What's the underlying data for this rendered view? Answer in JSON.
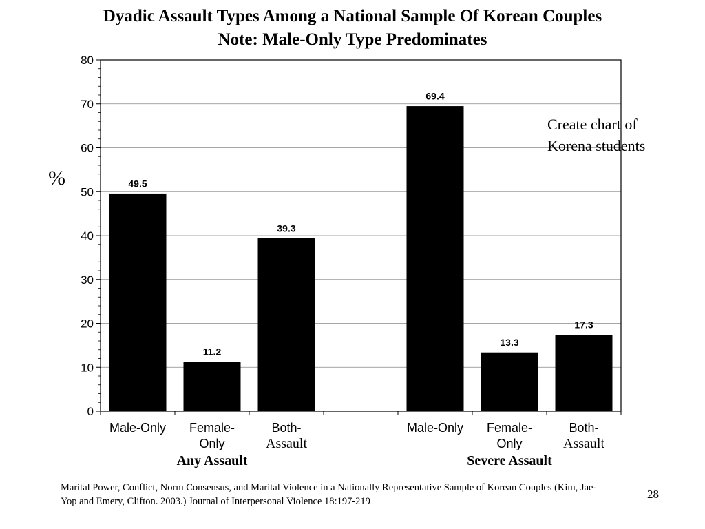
{
  "title_line1": "Dyadic Assault Types Among a National Sample Of Korean Couples",
  "title_line2": "Note:  Male-Only Type Predominates",
  "ylabel": "%",
  "annotation_line1": "Create chart of",
  "annotation_line2": "Korena students",
  "footer": "Marital Power, Conflict, Norm Consensus, and Marital Violence in a Nationally Representative Sample of Korean Couples (Kim, Jae-Yop and Emery, Clifton. 2003.) Journal of Interpersonal Violence 18:197-219",
  "slide_number": "28",
  "chart_data": {
    "type": "bar",
    "title": "Dyadic Assault Types Among a National Sample Of Korean Couples",
    "ylabel": "%",
    "ylim": [
      0,
      80
    ],
    "yticks": [
      0,
      10,
      20,
      30,
      40,
      50,
      60,
      70,
      80
    ],
    "grid": true,
    "bar_color": "#000000",
    "groups": [
      {
        "name": "Any Assault",
        "categories": [
          [
            "Male-Only"
          ],
          [
            "Female-",
            "Only"
          ],
          [
            "Both-",
            "Assault"
          ]
        ],
        "values": [
          49.5,
          11.2,
          39.3
        ]
      },
      {
        "name": "Severe Assault",
        "categories": [
          [
            "Male-Only"
          ],
          [
            "Female-",
            "Only"
          ],
          [
            "Both-",
            "Assault"
          ]
        ],
        "values": [
          69.4,
          13.3,
          17.3
        ]
      }
    ]
  }
}
